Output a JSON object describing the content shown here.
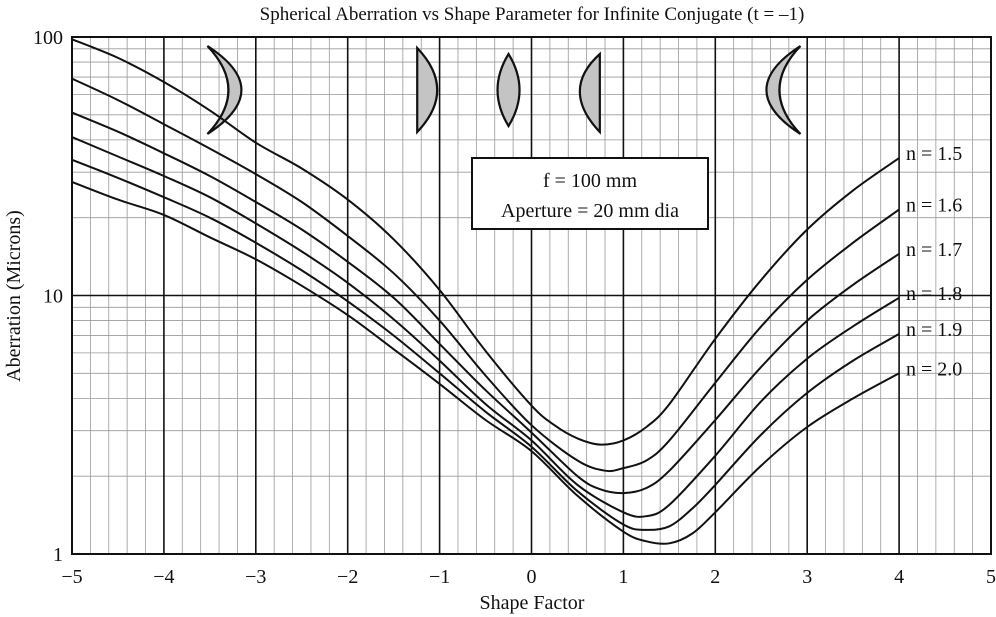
{
  "chart_data": {
    "type": "line",
    "title": "Spherical Aberration vs Shape Parameter for Infinite Conjugate (t = –1)",
    "xlabel": "Shape Factor",
    "ylabel": "Aberration (Microns)",
    "xlim": [
      -5,
      5
    ],
    "ylim": [
      1,
      100
    ],
    "yscale": "log",
    "grid": true,
    "x_ticks": [
      -5,
      -4,
      -3,
      -2,
      -1,
      0,
      1,
      2,
      3,
      4,
      5
    ],
    "x_tick_labels": [
      "−5",
      "−4",
      "−3",
      "−2",
      "−1",
      "0",
      "1",
      "2",
      "3",
      "4",
      "5"
    ],
    "y_ticks": [
      1,
      10,
      100
    ],
    "y_tick_labels": [
      "1",
      "10",
      "100"
    ],
    "annotation": {
      "line1": "f = 100 mm",
      "line2": "Aperture = 20 mm dia"
    },
    "lens_icons": [
      {
        "shape": "meniscus",
        "orientation": "right",
        "x": -3.2
      },
      {
        "shape": "plano-convex",
        "orientation": "right",
        "x": -1.2
      },
      {
        "shape": "biconvex",
        "orientation": "center",
        "x": -0.25
      },
      {
        "shape": "plano-convex",
        "orientation": "left",
        "x": 0.7
      },
      {
        "shape": "meniscus",
        "orientation": "left",
        "x": 2.6
      }
    ],
    "series": [
      {
        "name": "n = 1.5",
        "x": [
          -5,
          -4.5,
          -4,
          -3.5,
          -3,
          -2.5,
          -2,
          -1.5,
          -1,
          -0.5,
          0,
          0.25,
          0.5,
          0.75,
          1,
          1.25,
          1.5,
          2,
          2.5,
          3,
          3.5,
          4
        ],
        "y": [
          98,
          83,
          67,
          52,
          39,
          31,
          23.5,
          16.5,
          10.5,
          6.1,
          3.75,
          3.15,
          2.8,
          2.65,
          2.75,
          3.1,
          3.8,
          6.8,
          11.5,
          18,
          25.5,
          34
        ]
      },
      {
        "name": "n = 1.6",
        "x": [
          -5,
          -4.5,
          -4,
          -3.5,
          -3,
          -2.5,
          -2,
          -1.5,
          -1,
          -0.5,
          0,
          0.5,
          0.8,
          1,
          1.25,
          1.5,
          2,
          2.5,
          3,
          3.5,
          4
        ],
        "y": [
          69,
          57,
          46,
          37,
          29.5,
          23,
          17,
          12.2,
          8,
          4.9,
          3.15,
          2.3,
          2.1,
          2.15,
          2.3,
          2.75,
          4.6,
          7.6,
          11.5,
          16,
          21.5
        ]
      },
      {
        "name": "n = 1.7",
        "x": [
          -5,
          -4.5,
          -4,
          -3.5,
          -3,
          -2.5,
          -2,
          -1.5,
          -1,
          -0.5,
          0,
          0.5,
          0.75,
          1,
          1.25,
          1.5,
          2,
          2.5,
          3,
          3.5,
          4
        ],
        "y": [
          51,
          43,
          35.5,
          29,
          23,
          18,
          13.5,
          9.8,
          6.5,
          4.3,
          2.95,
          2.0,
          1.78,
          1.72,
          1.8,
          2.1,
          3.3,
          5.3,
          8.0,
          11,
          14.5
        ]
      },
      {
        "name": "n = 1.8",
        "x": [
          -5,
          -4.5,
          -4,
          -3.5,
          -3,
          -2.5,
          -2,
          -1.5,
          -1,
          -0.5,
          0,
          0.5,
          1,
          1.25,
          1.5,
          2,
          2.5,
          3,
          3.5,
          4
        ],
        "y": [
          41,
          34.5,
          29,
          24,
          19,
          14.8,
          11.2,
          8.1,
          5.6,
          3.8,
          2.75,
          1.85,
          1.45,
          1.4,
          1.55,
          2.4,
          3.9,
          5.7,
          7.6,
          9.8
        ]
      },
      {
        "name": "n = 1.9",
        "x": [
          -5,
          -4.5,
          -4,
          -3.5,
          -3,
          -2.5,
          -2,
          -1.5,
          -1,
          -0.5,
          0,
          0.5,
          1,
          1.25,
          1.5,
          1.75,
          2,
          2.5,
          3,
          3.5,
          4
        ],
        "y": [
          33.5,
          28.5,
          24,
          20,
          16,
          12.5,
          9.5,
          7,
          5,
          3.55,
          2.6,
          1.75,
          1.3,
          1.24,
          1.28,
          1.5,
          1.85,
          2.9,
          4.2,
          5.6,
          7.1
        ]
      },
      {
        "name": "n = 2.0",
        "x": [
          -5,
          -4.5,
          -4,
          -3.5,
          -3,
          -2.5,
          -2,
          -1.5,
          -1,
          -0.5,
          0,
          0.5,
          1,
          1.25,
          1.5,
          1.75,
          2,
          2.5,
          3,
          3.5,
          4
        ],
        "y": [
          27.5,
          23.5,
          20.5,
          16.8,
          13.8,
          10.9,
          8.4,
          6.2,
          4.55,
          3.3,
          2.5,
          1.68,
          1.22,
          1.12,
          1.1,
          1.2,
          1.45,
          2.2,
          3.1,
          4.0,
          5.0
        ]
      }
    ]
  }
}
